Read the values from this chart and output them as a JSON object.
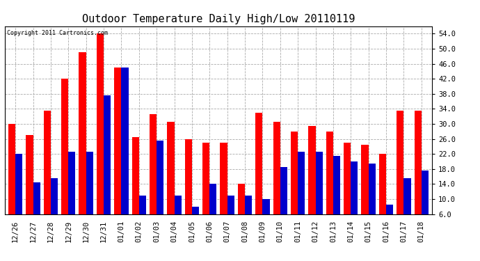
{
  "title": "Outdoor Temperature Daily High/Low 20110119",
  "copyright_text": "Copyright 2011 Cartronics.com",
  "dates": [
    "12/26",
    "12/27",
    "12/28",
    "12/29",
    "12/30",
    "12/31",
    "01/01",
    "01/02",
    "01/03",
    "01/04",
    "01/05",
    "01/06",
    "01/07",
    "01/08",
    "01/09",
    "01/10",
    "01/11",
    "01/12",
    "01/13",
    "01/14",
    "01/15",
    "01/16",
    "01/17",
    "01/18"
  ],
  "highs": [
    30.0,
    27.0,
    33.5,
    42.0,
    49.0,
    54.0,
    45.0,
    26.5,
    32.5,
    30.5,
    26.0,
    25.0,
    25.0,
    14.0,
    33.0,
    30.5,
    28.0,
    29.5,
    28.0,
    25.0,
    24.5,
    22.0,
    33.5,
    33.5
  ],
  "lows": [
    22.0,
    14.5,
    15.5,
    22.5,
    22.5,
    37.5,
    45.0,
    11.0,
    25.5,
    11.0,
    8.0,
    14.0,
    11.0,
    11.0,
    10.0,
    18.5,
    22.5,
    22.5,
    21.5,
    20.0,
    19.5,
    8.5,
    15.5,
    17.5
  ],
  "high_color": "#ff0000",
  "low_color": "#0000cc",
  "background_color": "#ffffff",
  "plot_background": "#ffffff",
  "grid_color": "#aaaaaa",
  "ylim_min": 6.0,
  "ylim_max": 56.0,
  "yticks": [
    6.0,
    10.0,
    14.0,
    18.0,
    22.0,
    26.0,
    30.0,
    34.0,
    38.0,
    42.0,
    46.0,
    50.0,
    54.0
  ],
  "title_fontsize": 11,
  "tick_fontsize": 7.5,
  "copyright_fontsize": 6,
  "bar_width": 0.4
}
